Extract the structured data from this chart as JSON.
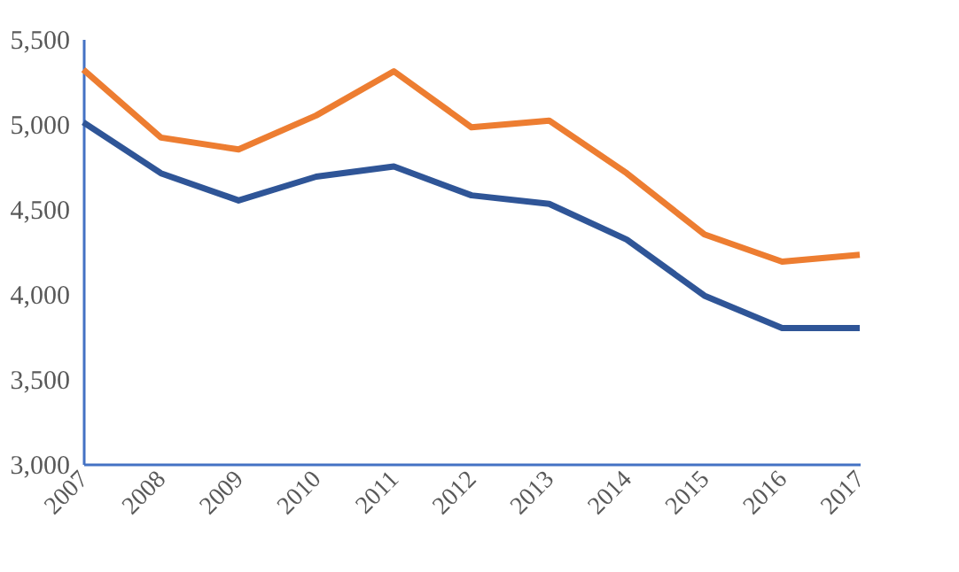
{
  "chart_data": {
    "type": "line",
    "categories": [
      "2007",
      "2008",
      "2009",
      "2010",
      "2011",
      "2012",
      "2013",
      "2014",
      "2015",
      "2016",
      "2017"
    ],
    "series": [
      {
        "color": "#ed7d31",
        "values": [
          5320,
          4920,
          4850,
          5050,
          5310,
          4980,
          5020,
          4710,
          4350,
          4190,
          4230
        ]
      },
      {
        "color": "#2f5597",
        "values": [
          5010,
          4710,
          4550,
          4690,
          4750,
          4580,
          4530,
          4320,
          3990,
          3800,
          3800
        ]
      }
    ],
    "ylim": [
      3000,
      5500
    ],
    "yticks": [
      {
        "value": 3000,
        "label": "3,000"
      },
      {
        "value": 3500,
        "label": "3,500"
      },
      {
        "value": 4000,
        "label": "4,000"
      },
      {
        "value": 4500,
        "label": "4,500"
      },
      {
        "value": 5000,
        "label": "5,000"
      },
      {
        "value": 5500,
        "label": "5,500"
      }
    ],
    "grid": false,
    "legend": false,
    "marker": "none",
    "line_style": "solid"
  }
}
